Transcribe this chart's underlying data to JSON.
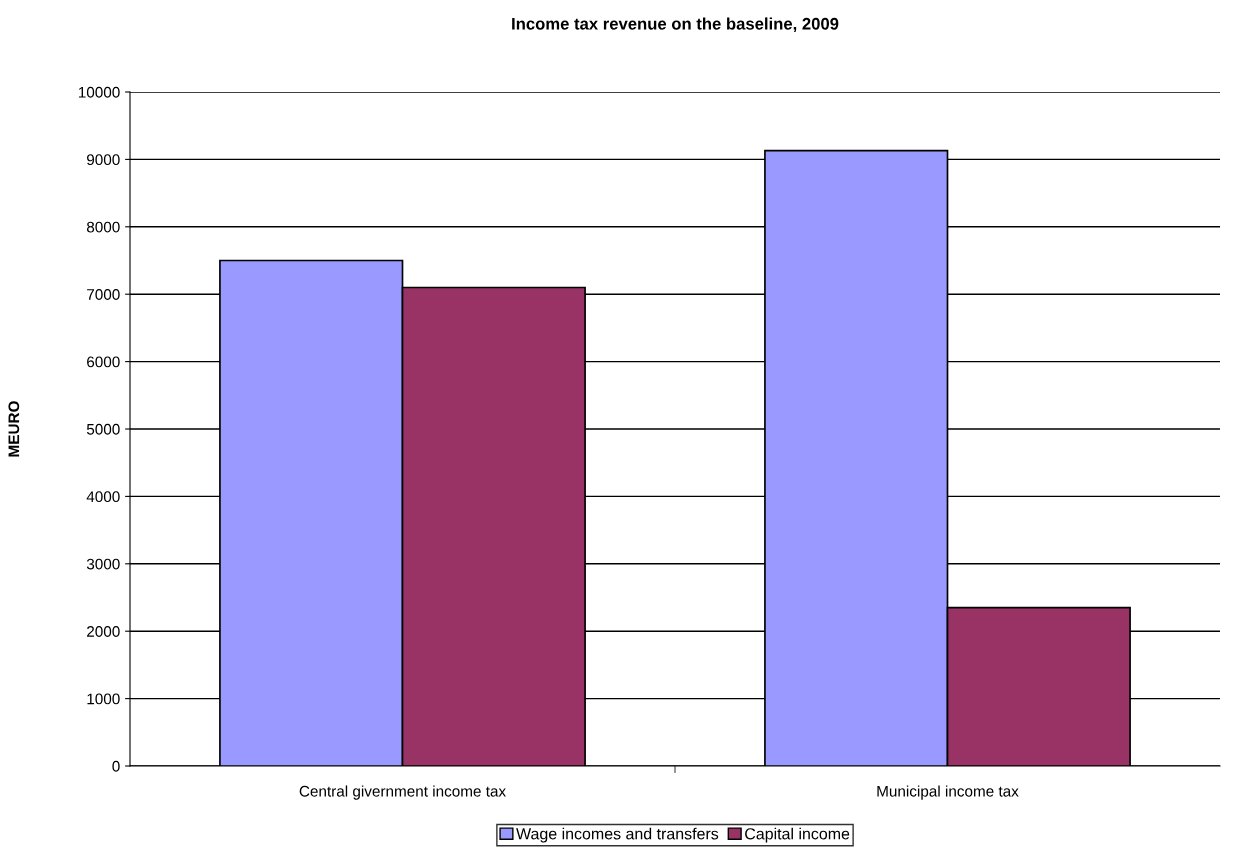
{
  "chart_data": {
    "type": "bar",
    "title": "Income tax revenue on the baseline, 2009",
    "ylabel": "MEURO",
    "categories": [
      "Central givernment income tax",
      "Municipal income tax"
    ],
    "series": [
      {
        "name": "Wage incomes and transfers",
        "color": "#9999ff",
        "values": [
          7500,
          9130
        ]
      },
      {
        "name": "Capital income",
        "color": "#993366",
        "values": [
          7100,
          2350
        ]
      }
    ],
    "ylim": [
      0,
      10000
    ],
    "yticks": [
      0,
      1000,
      2000,
      3000,
      4000,
      5000,
      6000,
      7000,
      8000,
      9000,
      10000
    ],
    "grid": "y",
    "legend": "bottom"
  }
}
